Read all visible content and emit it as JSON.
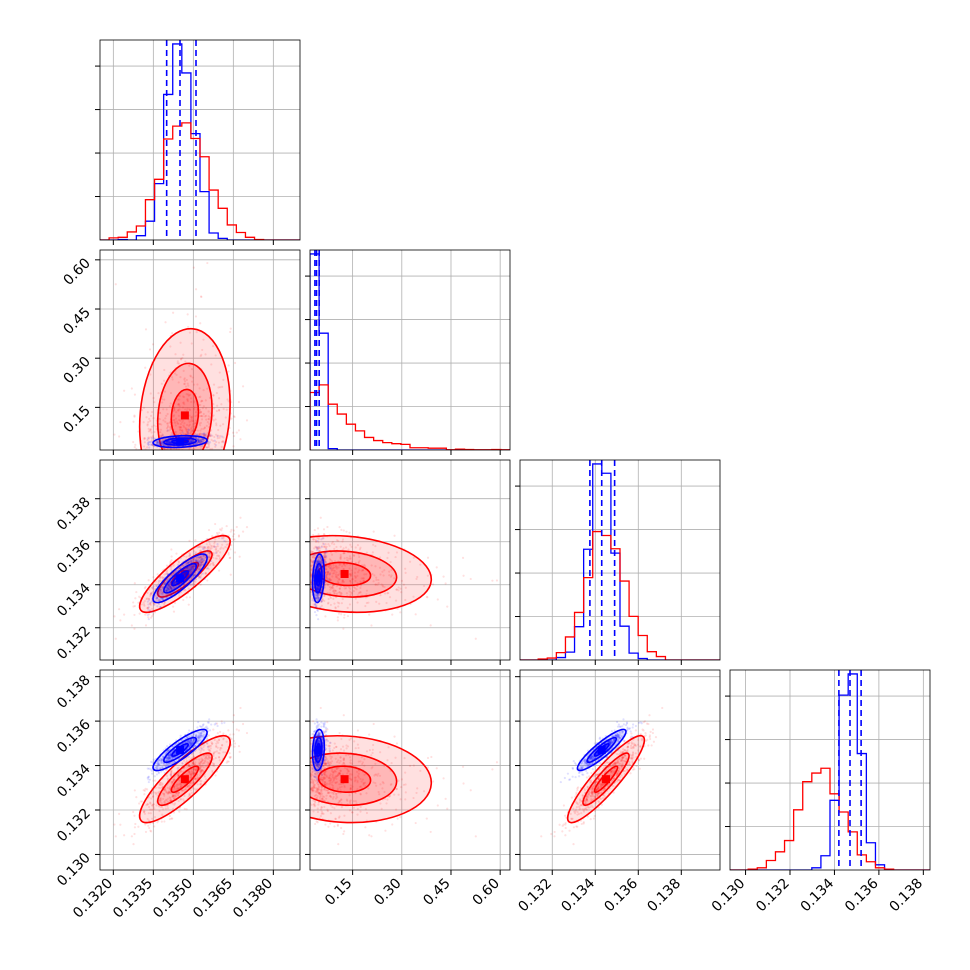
{
  "chart_data": {
    "type": "corner",
    "title": "",
    "grid": true,
    "colors": {
      "blue": "#0000ff",
      "red": "#ff0000",
      "grid": "#b0b0b0",
      "frame": "#000000"
    },
    "parameters": [
      {
        "id": "p1",
        "xlabel": "",
        "range": [
          0.1315,
          0.139
        ],
        "ticks": [
          "0.1320",
          "0.1335",
          "0.1350",
          "0.1365",
          "0.1380"
        ]
      },
      {
        "id": "p2",
        "xlabel": "",
        "range": [
          0.02,
          0.63
        ],
        "ticks": [
          "0.15",
          "0.30",
          "0.45",
          "0.60"
        ]
      },
      {
        "id": "p3",
        "xlabel": "",
        "range": [
          0.1305,
          0.1398
        ],
        "ticks": [
          "0.132",
          "0.134",
          "0.136",
          "0.138"
        ]
      },
      {
        "id": "p4",
        "xlabel": "",
        "range": [
          0.1293,
          0.1383
        ],
        "ticks": [
          "0.130",
          "0.132",
          "0.134",
          "0.136",
          "0.138"
        ]
      }
    ],
    "series": [
      {
        "name": "",
        "color": "#0000ff",
        "means": [
          0.1345,
          0.045,
          0.1343,
          0.1347
        ],
        "sds": [
          0.0005,
          0.01,
          0.00055,
          0.00045
        ],
        "corr": [
          [
            1,
            0.2,
            0.85,
            0.85
          ],
          [
            0.2,
            1,
            0.2,
            0.15
          ],
          [
            0.85,
            0.2,
            1,
            0.9
          ],
          [
            0.85,
            0.15,
            0.9,
            1
          ]
        ],
        "quantiles": [
          [
            0.134,
            0.1345,
            0.1351
          ],
          [
            0.035,
            0.04,
            0.048
          ],
          [
            0.13375,
            0.1343,
            0.1349
          ],
          [
            0.1342,
            0.1347,
            0.1352
          ]
        ]
      },
      {
        "name": "",
        "color": "#ff0000",
        "means": [
          0.1347,
          0.09,
          0.1345,
          0.1334
        ],
        "sds": [
          0.00085,
          0.08,
          0.0009,
          0.001
        ],
        "corr": [
          [
            1,
            0.15,
            0.85,
            0.85
          ],
          [
            0.15,
            1,
            -0.2,
            -0.1
          ],
          [
            0.85,
            -0.2,
            1,
            0.9
          ],
          [
            0.85,
            -0.1,
            0.9,
            1
          ]
        ],
        "quantiles": []
      }
    ]
  }
}
